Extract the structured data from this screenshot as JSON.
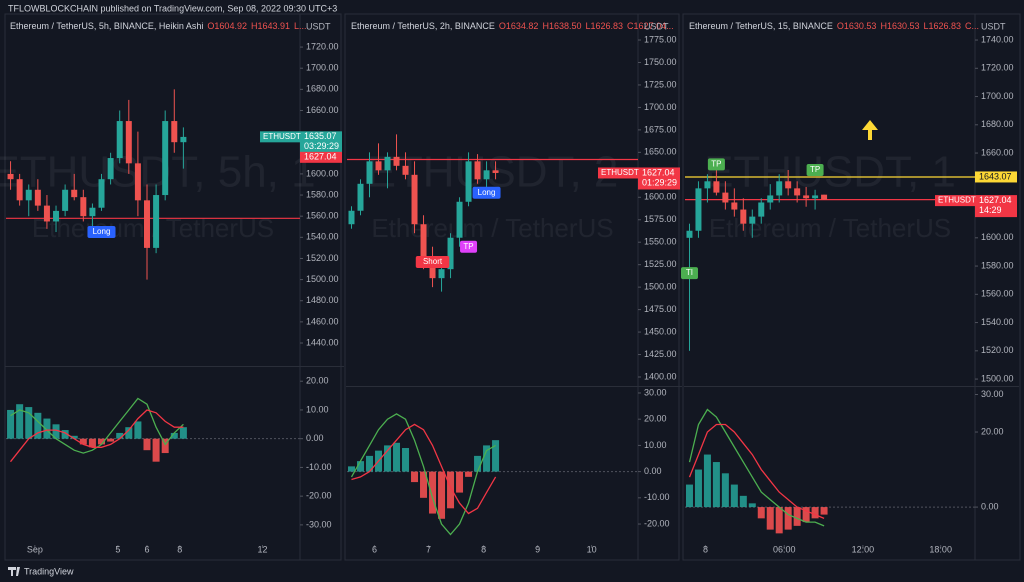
{
  "header": {
    "text": "TFLOWBLOCKCHAIN published on TradingView.com, Sep 08, 2022 09:30 UTC+3"
  },
  "footer": {
    "logo": "TradingView"
  },
  "chart_data": [
    {
      "type": "candlestick",
      "title": "Ethereum / TetherUS, 5h, BINANCE, Heikin Ashi",
      "ohlc_legend": [
        "O1604.92",
        "H1643.91",
        "L..."
      ],
      "currency": "USDT",
      "watermark": [
        "ETHUSDT, 5h, 1",
        "Ethereum / TetherUS"
      ],
      "xlim": [
        -0.5,
        31.6
      ],
      "xticks": [
        {
          "value": 2.67,
          "label": "Sep"
        },
        {
          "value": 11.8,
          "label": "5"
        },
        {
          "value": 15,
          "label": "6"
        },
        {
          "value": 18.6,
          "label": "8"
        },
        {
          "value": 27.7,
          "label": "12"
        }
      ],
      "ylim": [
        1419.2,
        1747.5
      ],
      "yticks": [
        {
          "value": 1440,
          "label": "1440.00"
        },
        {
          "value": 1460,
          "label": "1460.00"
        },
        {
          "value": 1480,
          "label": "1480.00"
        },
        {
          "value": 1500,
          "label": "1500.00"
        },
        {
          "value": 1520,
          "label": "1520.00"
        },
        {
          "value": 1540,
          "label": "1540.00"
        },
        {
          "value": 1560,
          "label": "1560.00"
        },
        {
          "value": 1580,
          "label": "1580.00"
        },
        {
          "value": 1600,
          "label": "1600.00"
        },
        {
          "value": 1620,
          "label": "1620.00"
        },
        {
          "value": 1660,
          "label": "1660.00"
        },
        {
          "value": 1680,
          "label": "1680.00"
        },
        {
          "value": 1700,
          "label": "1700.00"
        },
        {
          "value": 1720,
          "label": "1720.00"
        }
      ],
      "open": [
        1600,
        1595,
        1575,
        1585,
        1570,
        1555,
        1565,
        1585,
        1578,
        1560,
        1568,
        1595,
        1615,
        1650,
        1610,
        1575,
        1530,
        1580,
        1650,
        1630
      ],
      "high": [
        1612,
        1600,
        1590,
        1595,
        1580,
        1570,
        1590,
        1600,
        1585,
        1572,
        1600,
        1620,
        1660,
        1670,
        1640,
        1590,
        1590,
        1660,
        1680,
        1644
      ],
      "low": [
        1585,
        1570,
        1560,
        1565,
        1548,
        1545,
        1560,
        1575,
        1555,
        1540,
        1565,
        1590,
        1610,
        1600,
        1560,
        1500,
        1525,
        1575,
        1620,
        1605
      ],
      "close": [
        1595,
        1575,
        1585,
        1570,
        1555,
        1565,
        1585,
        1578,
        1560,
        1568,
        1595,
        1615,
        1650,
        1610,
        1575,
        1530,
        1580,
        1650,
        1630,
        1635
      ],
      "up_color": "#26a69a",
      "down_color": "#ef5350",
      "levels": [
        {
          "value": 1558,
          "color": "#f23645"
        }
      ],
      "signals": [
        {
          "label": "Long",
          "index": 10,
          "price": 1545,
          "color": "#2962ff"
        }
      ],
      "price_tags": [
        {
          "label": "ETHUSDT",
          "value": 1635.07,
          "time": "03:29:29",
          "color": "#26a69a"
        },
        {
          "value": 1627.04,
          "color": "#f23645"
        }
      ],
      "macd": {
        "ylim": [
          -37,
          24.6
        ],
        "yticks": [
          {
            "value": 20,
            "label": "20.00"
          },
          {
            "value": 10,
            "label": "10.00"
          },
          {
            "value": 0,
            "label": "0.00"
          },
          {
            "value": -10,
            "label": "-10.00"
          },
          {
            "value": -20,
            "label": "-20.00"
          },
          {
            "value": -30,
            "label": "-30.00"
          }
        ],
        "histogram": [
          10,
          12,
          11,
          9,
          7,
          5,
          3,
          1,
          -2,
          -3,
          -2,
          -1,
          2,
          4,
          6,
          -4,
          -8,
          -5,
          2,
          4
        ],
        "macd": [
          8,
          10,
          9,
          6,
          3,
          0,
          -2,
          -4,
          -5,
          -4,
          -2,
          2,
          6,
          10,
          14,
          12,
          4,
          -2,
          2,
          5
        ],
        "signal": [
          -8,
          -4,
          0,
          2,
          3,
          3,
          2,
          0,
          -2,
          -3,
          -3,
          -2,
          0,
          3,
          7,
          10,
          9,
          6,
          4,
          4
        ],
        "macd_color": "#4caf50",
        "signal_color": "#f23645"
      }
    },
    {
      "type": "candlestick",
      "title": "Ethereum / TetherUS, 2h, BINANCE",
      "ohlc_legend": [
        "O1634.82",
        "H1638.50",
        "L1626.83",
        "C1627.04..."
      ],
      "currency": "USDT",
      "watermark": [
        "ETHUSDT, 2",
        "Ethereum / TetherUS"
      ],
      "xlim": [
        -0.5,
        31.6
      ],
      "xticks": [
        {
          "value": 2.56,
          "label": "6"
        },
        {
          "value": 8.56,
          "label": "7"
        },
        {
          "value": 14.67,
          "label": "8"
        },
        {
          "value": 20.67,
          "label": "9"
        },
        {
          "value": 26.67,
          "label": "10"
        }
      ],
      "ylim": [
        1391.1,
        1799.5
      ],
      "yticks": [
        {
          "value": 1400,
          "label": "1400.00"
        },
        {
          "value": 1425,
          "label": "1425.00"
        },
        {
          "value": 1450,
          "label": "1450.00"
        },
        {
          "value": 1475,
          "label": "1475.00"
        },
        {
          "value": 1500,
          "label": "1500.00"
        },
        {
          "value": 1525,
          "label": "1525.00"
        },
        {
          "value": 1550,
          "label": "1550.00"
        },
        {
          "value": 1575,
          "label": "1575.00"
        },
        {
          "value": 1600,
          "label": "1600.00"
        },
        {
          "value": 1650,
          "label": "1650.00"
        },
        {
          "value": 1675,
          "label": "1675.00"
        },
        {
          "value": 1700,
          "label": "1700.00"
        },
        {
          "value": 1725,
          "label": "1725.00"
        },
        {
          "value": 1750,
          "label": "1750.00"
        },
        {
          "value": 1775,
          "label": "1775.00"
        }
      ],
      "open": [
        1570,
        1585,
        1615,
        1640,
        1630,
        1645,
        1635,
        1625,
        1570,
        1530,
        1510,
        1520,
        1555,
        1595,
        1640,
        1620,
        1630
      ],
      "high": [
        1590,
        1620,
        1650,
        1660,
        1650,
        1670,
        1650,
        1640,
        1580,
        1545,
        1530,
        1560,
        1600,
        1650,
        1648,
        1640,
        1640
      ],
      "low": [
        1565,
        1580,
        1600,
        1625,
        1610,
        1630,
        1620,
        1560,
        1520,
        1500,
        1495,
        1510,
        1545,
        1590,
        1615,
        1610,
        1620
      ],
      "close": [
        1585,
        1615,
        1640,
        1630,
        1645,
        1635,
        1625,
        1570,
        1530,
        1510,
        1520,
        1555,
        1595,
        1640,
        1620,
        1630,
        1627.04
      ],
      "up_color": "#26a69a",
      "down_color": "#ef5350",
      "levels": [
        {
          "value": 1642,
          "color": "#f23645"
        }
      ],
      "signals": [
        {
          "label": "Short",
          "index": 9,
          "price": 1528,
          "color": "#f23645"
        },
        {
          "label": "TP",
          "index": 13,
          "price": 1545,
          "color": "#e040fb"
        },
        {
          "label": "Long",
          "index": 15,
          "price": 1605,
          "color": "#2962ff"
        }
      ],
      "price_tags": [
        {
          "label": "ETHUSDT",
          "value": 1627.04,
          "time": "01:29:29",
          "color": "#f23645"
        }
      ],
      "macd": {
        "ylim": [
          -28,
          31.9
        ],
        "yticks": [
          {
            "value": 30,
            "label": "30.00"
          },
          {
            "value": 20,
            "label": "20.00"
          },
          {
            "value": 10,
            "label": "10.00"
          },
          {
            "value": 0,
            "label": "0.00"
          },
          {
            "value": -10,
            "label": "-10.00"
          },
          {
            "value": -20,
            "label": "-20.00"
          }
        ],
        "histogram": [
          2,
          4,
          6,
          8,
          10,
          11,
          9,
          -4,
          -10,
          -16,
          -18,
          -14,
          -8,
          -2,
          6,
          10,
          12
        ],
        "macd": [
          -2,
          4,
          10,
          16,
          20,
          22,
          20,
          12,
          2,
          -10,
          -20,
          -24,
          -20,
          -12,
          0,
          8,
          10
        ],
        "signal": [
          -3,
          -2,
          0,
          4,
          8,
          12,
          16,
          18,
          16,
          10,
          2,
          -6,
          -12,
          -16,
          -14,
          -8,
          -2
        ],
        "macd_color": "#4caf50",
        "signal_color": "#f23645"
      }
    },
    {
      "type": "candlestick",
      "title": "Ethereum / TetherUS, 15, BINANCE",
      "ohlc_legend": [
        "O1630.53",
        "H1630.53",
        "L1626.83",
        "C..."
      ],
      "currency": "USDT",
      "watermark": [
        "ETHUSDT, 1",
        "Ethereum / TetherUS"
      ],
      "xlim": [
        -0.5,
        31.6
      ],
      "xticks": [
        {
          "value": 1.78,
          "label": "8"
        },
        {
          "value": 10.56,
          "label": "06:00"
        },
        {
          "value": 19.33,
          "label": "12:00"
        },
        {
          "value": 28,
          "label": "18:00"
        }
      ],
      "ylim": [
        1495.8,
        1755.6
      ],
      "yticks": [
        {
          "value": 1500,
          "label": "1500.00"
        },
        {
          "value": 1520,
          "label": "1520.00"
        },
        {
          "value": 1540,
          "label": "1540.00"
        },
        {
          "value": 1560,
          "label": "1560.00"
        },
        {
          "value": 1580,
          "label": "1580.00"
        },
        {
          "value": 1600,
          "label": "1600.00"
        },
        {
          "value": 1660,
          "label": "1660.00"
        },
        {
          "value": 1680,
          "label": "1680.00"
        },
        {
          "value": 1700,
          "label": "1700.00"
        },
        {
          "value": 1720,
          "label": "1720.00"
        },
        {
          "value": 1740,
          "label": "1740.00"
        }
      ],
      "open": [
        1600,
        1605,
        1635,
        1640,
        1632,
        1625,
        1620,
        1610,
        1615,
        1625,
        1630,
        1640,
        1635,
        1630,
        1628,
        1630.53
      ],
      "high": [
        1610,
        1640,
        1645,
        1648,
        1640,
        1635,
        1628,
        1620,
        1628,
        1638,
        1645,
        1648,
        1640,
        1636,
        1634,
        1630.53
      ],
      "low": [
        1520,
        1600,
        1625,
        1630,
        1620,
        1615,
        1605,
        1600,
        1610,
        1620,
        1625,
        1630,
        1625,
        1622,
        1620,
        1626.83
      ],
      "close": [
        1605,
        1635,
        1640,
        1632,
        1625,
        1620,
        1610,
        1615,
        1625,
        1630,
        1640,
        1635,
        1630,
        1628,
        1630,
        1627.04
      ],
      "up_color": "#26a69a",
      "down_color": "#ef5350",
      "levels": [
        {
          "value": 1643.07,
          "color": "#fdd835"
        },
        {
          "value": 1627.04,
          "color": "#f23645"
        }
      ],
      "signals": [
        {
          "label": "TI",
          "index": 0,
          "price": 1575,
          "color": "#4caf50"
        },
        {
          "label": "TP",
          "index": 3,
          "price": 1652,
          "color": "#4caf50"
        },
        {
          "label": "TP",
          "index": 14,
          "price": 1648,
          "color": "#4caf50"
        }
      ],
      "price_tags": [
        {
          "value": 1643.07,
          "color": "#fdd835"
        },
        {
          "label": "ETHUSDT",
          "value": 1627.04,
          "time": "14:29",
          "color": "#f23645"
        }
      ],
      "macd": {
        "ylim": [
          -10.1,
          31.2
        ],
        "yticks": [
          {
            "value": 30,
            "label": "30.00"
          },
          {
            "value": 20,
            "label": "20.00"
          },
          {
            "value": 0,
            "label": "0.00"
          }
        ],
        "histogram": [
          6,
          10,
          14,
          12,
          9,
          6,
          3,
          1,
          -3,
          -6,
          -7,
          -6,
          -5,
          -4,
          -3,
          -2
        ],
        "macd": [
          12,
          22,
          26,
          24,
          20,
          16,
          12,
          8,
          4,
          2,
          0,
          -2,
          -3,
          -4,
          -4,
          -5
        ],
        "signal": [
          8,
          14,
          20,
          22,
          22,
          20,
          17,
          14,
          10,
          7,
          4,
          2,
          0,
          -1,
          -2,
          -3
        ],
        "macd_color": "#4caf50",
        "signal_color": "#f23645"
      }
    }
  ]
}
